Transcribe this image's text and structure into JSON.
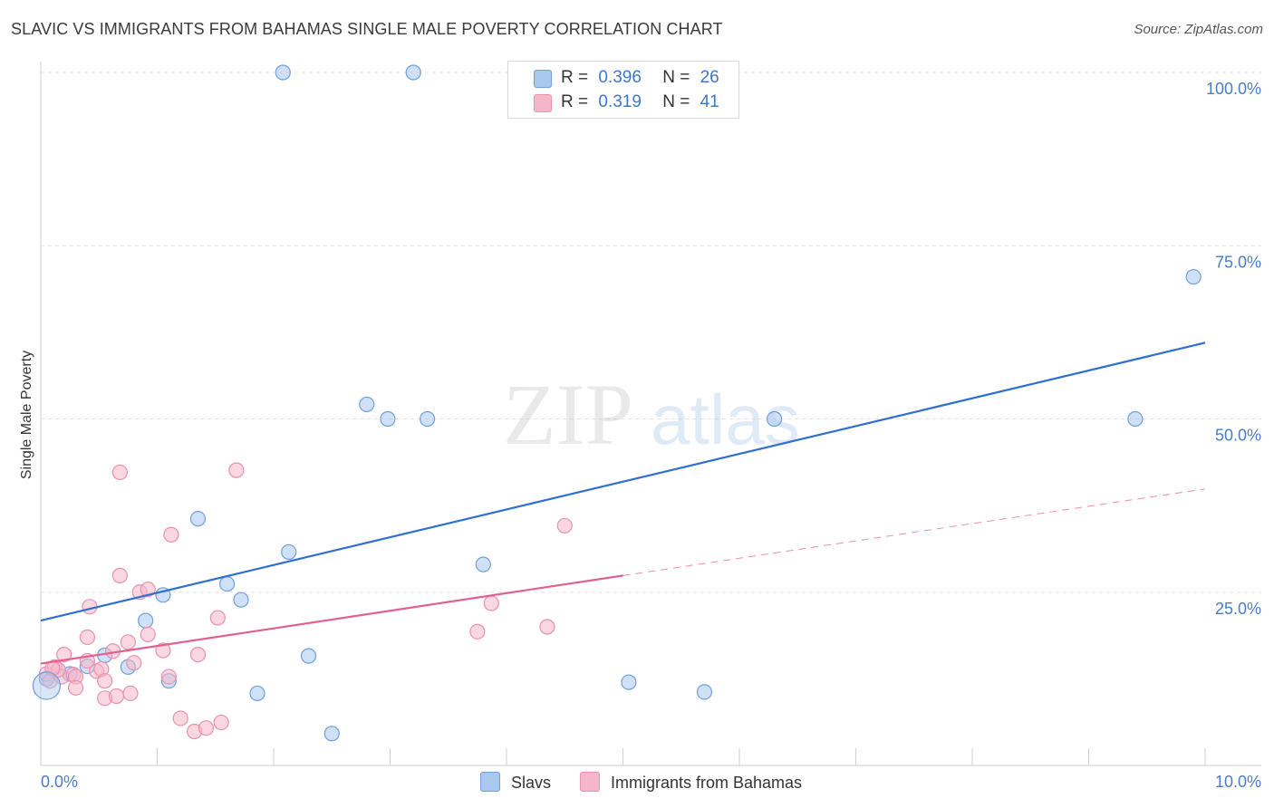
{
  "header": {
    "title": "SLAVIC VS IMMIGRANTS FROM BAHAMAS SINGLE MALE POVERTY CORRELATION CHART",
    "source": "Source: ZipAtlas.com"
  },
  "legend": {
    "rows": [
      {
        "r_label": "R =",
        "r_value": "0.396",
        "n_label": "N =",
        "n_value": "26"
      },
      {
        "r_label": "R =",
        "r_value": "0.319",
        "n_label": "N =",
        "n_value": "41"
      }
    ],
    "bottom": [
      "Slavs",
      "Immigrants from Bahamas"
    ]
  },
  "colors": {
    "slavs_fill": "#a9c8f0",
    "slavs_stroke": "#6f9fdc",
    "slavs_line": "#2f6fcf",
    "bahamas_fill": "#f6b6c9",
    "bahamas_stroke": "#e991ae",
    "bahamas_line": "#e0608f",
    "tick_text": "#4a7cc8",
    "grid": "#e3e3e3"
  },
  "watermark": {
    "part1": "ZIP",
    "part2": "atlas"
  },
  "chart_data": {
    "type": "scatter",
    "title": "SLAVIC VS IMMIGRANTS FROM BAHAMAS SINGLE MALE POVERTY CORRELATION CHART",
    "xlabel": "",
    "ylabel": "Single Male Poverty",
    "xlim": [
      0,
      10
    ],
    "ylim": [
      0,
      100
    ],
    "x_tick_labels": [
      "0.0%",
      "10.0%"
    ],
    "y_ticks": [
      25,
      50,
      75,
      100
    ],
    "y_tick_labels": [
      "25.0%",
      "50.0%",
      "75.0%",
      "100.0%"
    ],
    "grid": true,
    "legend_position": "top-center",
    "series": [
      {
        "name": "Slavs",
        "r": 0.396,
        "n": 26,
        "points": [
          [
            0.05,
            12.5
          ],
          [
            0.25,
            13.2
          ],
          [
            0.4,
            14.3
          ],
          [
            0.55,
            15.9
          ],
          [
            0.75,
            14.2
          ],
          [
            0.9,
            20.9
          ],
          [
            1.05,
            24.6
          ],
          [
            1.1,
            12.2
          ],
          [
            1.35,
            35.6
          ],
          [
            1.6,
            26.2
          ],
          [
            1.72,
            23.9
          ],
          [
            1.86,
            10.4
          ],
          [
            2.08,
            100.0
          ],
          [
            2.13,
            30.8
          ],
          [
            2.3,
            15.8
          ],
          [
            2.5,
            4.6
          ],
          [
            2.8,
            52.1
          ],
          [
            2.98,
            50.0
          ],
          [
            3.2,
            100.0
          ],
          [
            3.32,
            50.0
          ],
          [
            3.8,
            29.0
          ],
          [
            5.05,
            12.0
          ],
          [
            5.7,
            10.6
          ],
          [
            6.3,
            50.0
          ],
          [
            9.4,
            50.0
          ],
          [
            9.9,
            70.5
          ]
        ],
        "trend": {
          "x": [
            0,
            10
          ],
          "y": [
            20.9,
            61.0
          ]
        }
      },
      {
        "name": "Immigrants from Bahamas",
        "r": 0.319,
        "n": 41,
        "points": [
          [
            0.05,
            13.2
          ],
          [
            0.08,
            12.2
          ],
          [
            0.12,
            14.2
          ],
          [
            0.18,
            12.8
          ],
          [
            0.2,
            16.0
          ],
          [
            0.28,
            13.1
          ],
          [
            0.3,
            12.8
          ],
          [
            0.3,
            11.2
          ],
          [
            0.4,
            15.1
          ],
          [
            0.4,
            18.5
          ],
          [
            0.42,
            22.9
          ],
          [
            0.48,
            13.6
          ],
          [
            0.52,
            13.9
          ],
          [
            0.55,
            12.2
          ],
          [
            0.55,
            9.7
          ],
          [
            0.62,
            16.5
          ],
          [
            0.65,
            10.0
          ],
          [
            0.68,
            27.4
          ],
          [
            0.68,
            42.3
          ],
          [
            0.75,
            17.8
          ],
          [
            0.77,
            10.4
          ],
          [
            0.8,
            14.8
          ],
          [
            0.85,
            25.0
          ],
          [
            0.92,
            18.9
          ],
          [
            0.92,
            25.4
          ],
          [
            1.05,
            16.6
          ],
          [
            1.1,
            12.8
          ],
          [
            1.12,
            33.3
          ],
          [
            1.2,
            6.8
          ],
          [
            1.32,
            4.9
          ],
          [
            1.35,
            16.0
          ],
          [
            1.42,
            5.4
          ],
          [
            1.52,
            21.3
          ],
          [
            1.55,
            6.2
          ],
          [
            1.68,
            42.6
          ],
          [
            3.75,
            19.3
          ],
          [
            3.87,
            23.4
          ],
          [
            4.35,
            20.0
          ],
          [
            4.5,
            34.6
          ],
          [
            0.15,
            13.8
          ],
          [
            0.1,
            14.0
          ]
        ],
        "trend": {
          "x": [
            0,
            5
          ],
          "y": [
            14.7,
            27.4
          ]
        },
        "trend_extension": {
          "x": [
            5,
            10
          ],
          "y": [
            27.4,
            39.9
          ]
        }
      }
    ]
  }
}
